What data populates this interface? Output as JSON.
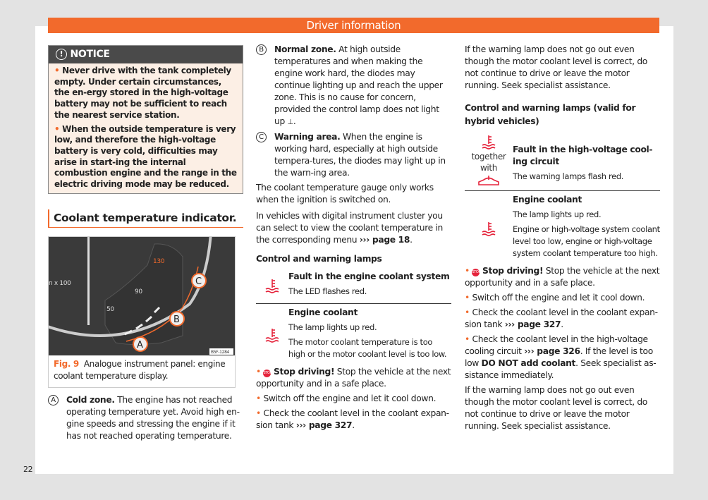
{
  "header": {
    "title": "Driver information"
  },
  "page_number": "22",
  "notice": {
    "title": "NOTICE",
    "bullets": [
      "Never drive with the tank completely empty. Under certain circumstances, the en-ergy stored in the high-voltage battery may not be sufficient to reach the nearest service station.",
      "When the outside temperature is very low, and therefore the high-voltage battery is very cold, difficulties may arise in start-ing the internal combustion engine and the range in the electric driving mode may be reduced."
    ]
  },
  "section_title": "Coolant temperature indicator.",
  "figure": {
    "code": "B5F-1284",
    "label": "Fig. 9",
    "caption": "Analogue instrument panel: engine coolant temperature display.",
    "gauge_labels": [
      "50",
      "90",
      "130",
      "n x 100"
    ],
    "callouts": [
      "A",
      "B",
      "C"
    ]
  },
  "zones": [
    {
      "letter": "A",
      "title": "Cold zone.",
      "text": " The engine has not reached operating temperature yet. Avoid high en-gine speeds and stressing the engine if it has not reached operating temperature."
    },
    {
      "letter": "B",
      "title": "Normal zone.",
      "text": " At high outside temperatures and when making the engine work hard, the diodes may continue lighting up and reach the upper zone. This is no cause for concern, provided the control lamp does not light up"
    },
    {
      "letter": "C",
      "title": "Warning area.",
      "text": " When the engine is working hard, especially at high outside tempera-tures, the diodes may light up in the warn-ing area."
    }
  ],
  "col2": {
    "p1": "The coolant temperature gauge only works when the ignition is switched on.",
    "p2": "In vehicles with digital instrument cluster you can select to view the coolant temperature in the corresponding menu",
    "p2_ref": "››› page 18",
    "lamps_title": "Control and warning lamps",
    "lamps": [
      {
        "title": "Fault in the engine coolant system",
        "lines": [
          "The LED flashes red."
        ]
      },
      {
        "title": "Engine coolant",
        "lines": [
          "The lamp lights up red.",
          "The motor coolant temperature is too high or the motor coolant level is too low."
        ]
      }
    ],
    "stop_title": "Stop driving!",
    "stop_text": " Stop the vehicle at the next opportunity and in a safe place.",
    "b2": "Switch off the engine and let it cool down.",
    "b3": "Check the coolant level in the coolant expan-sion tank",
    "b3_ref": "››› page 327"
  },
  "col3": {
    "p1": "If the warning lamp does not go out even though the motor coolant level is correct, do not continue to drive or leave the motor running. Seek specialist assistance.",
    "lamps_title": "Control and warning lamps (valid for hybrid vehicles)",
    "together": "together with",
    "lamps": [
      {
        "title": "Fault in the high-voltage cool-ing circuit",
        "lines": [
          "The warning lamps flash red."
        ]
      },
      {
        "title": "Engine coolant",
        "lines": [
          "The lamp lights up red.",
          "Engine or high-voltage system coolant level too low, engine or high-voltage system coolant temperature too high."
        ]
      }
    ],
    "stop_title": "Stop driving!",
    "stop_text": " Stop the vehicle at the next opportunity and in a safe place.",
    "b2": "Switch off the engine and let it cool down.",
    "b3": "Check the coolant level in the coolant expan-sion tank",
    "b3_ref": "››› page 327",
    "b4a": "Check the coolant level in the high-voltage cooling circuit",
    "b4_ref": "››› page 326",
    "b4b": ". If the level is too low ",
    "b4_bold": "DO NOT add coolant",
    "b4c": ". Seek specialist as-sistance immediately.",
    "p2": "If the warning lamp does not go out even though the motor coolant level is correct, do not continue to drive or leave the motor running. Seek specialist assistance."
  },
  "colors": {
    "accent": "#f26a2c",
    "warning_red": "#e5233b",
    "notice_bg": "#fcefe5"
  }
}
